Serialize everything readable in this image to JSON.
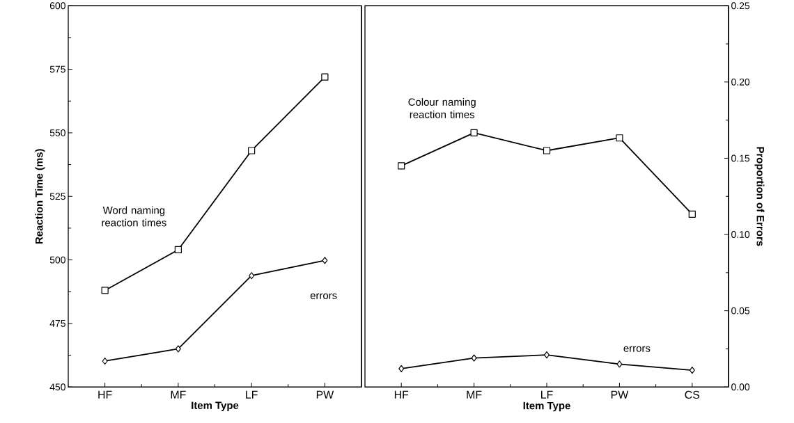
{
  "chart_data": [
    {
      "type": "line",
      "xlabel": "Item Type",
      "ylabel": "Reaction Time (ms)",
      "categories": [
        "HF",
        "MF",
        "LF",
        "PW"
      ],
      "series": [
        {
          "name": "Word naming reaction times",
          "color": "#000000",
          "marker": "square",
          "values": [
            488,
            504,
            543,
            572
          ]
        },
        {
          "name": "errors",
          "color": "#000000",
          "marker": "diamond",
          "axis": "y2",
          "values": [
            0.017,
            0.025,
            0.073,
            0.083
          ]
        }
      ],
      "ylim": [
        450,
        600
      ],
      "yticks": [
        450,
        475,
        500,
        525,
        550,
        575,
        600
      ],
      "y2lim": [
        0,
        0.25
      ],
      "tick_labels": [
        "x",
        "y"
      ]
    },
    {
      "type": "line",
      "xlabel": "Item Type",
      "y2label": "Proportion of Errors",
      "categories": [
        "HF",
        "MF",
        "LF",
        "PW",
        "CS"
      ],
      "series": [
        {
          "name": "Colour naming reaction times",
          "color": "#000000",
          "marker": "square",
          "values": [
            537,
            550,
            543,
            548,
            518
          ]
        },
        {
          "name": "errors",
          "color": "#000000",
          "marker": "diamond",
          "axis": "y2",
          "values": [
            0.012,
            0.019,
            0.021,
            0.015,
            0.011
          ]
        }
      ],
      "ylim": [
        450,
        600
      ],
      "y2lim": [
        0,
        0.25
      ],
      "y2ticks": [
        {
          "value": 0,
          "label": "0.00"
        },
        {
          "value": 0.05,
          "label": "0.05"
        },
        {
          "value": 0.1,
          "label": "0.10"
        },
        {
          "value": 0.15,
          "label": "0.15"
        },
        {
          "value": 0.2,
          "label": "0.20"
        },
        {
          "value": 0.25,
          "label": "0.25"
        }
      ],
      "tick_labels": [
        "x",
        "y2"
      ]
    }
  ]
}
